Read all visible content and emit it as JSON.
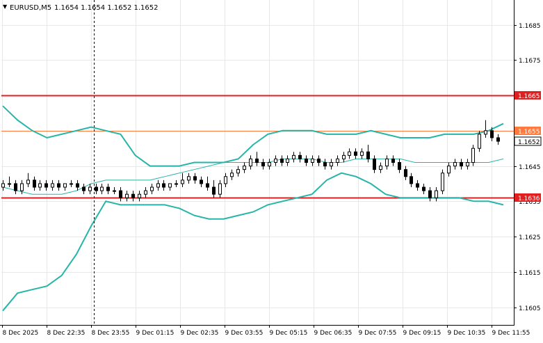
{
  "header": {
    "symbol": "EURUSD,M5",
    "ohlc": "1.1654 1.1654 1.1652 1.1652",
    "dropdown_glyph": "▼"
  },
  "chart_data": {
    "type": "candlestick",
    "title": "EURUSD,M5",
    "xlabel": "",
    "ylabel": "",
    "ylim": [
      1.16,
      1.1692
    ],
    "grid": true,
    "y_ticks": [
      "1.1605",
      "1.1615",
      "1.1625",
      "1.1635",
      "1.1645",
      "1.1655",
      "1.1665",
      "1.1675",
      "1.1685"
    ],
    "x_ticks": [
      "8 Dec 2025",
      "8 Dec 22:35",
      "8 Dec 23:55",
      "9 Dec 01:15",
      "9 Dec 02:35",
      "9 Dec 03:55",
      "9 Dec 05:15",
      "9 Dec 06:35",
      "9 Dec 07:55",
      "9 Dec 09:15",
      "9 Dec 10:35",
      "9 Dec 11:55"
    ],
    "price_labels": [
      {
        "value": 1.1665,
        "label": "1.1665",
        "style": "red"
      },
      {
        "value": 1.1655,
        "label": "1.1655",
        "style": "orange"
      },
      {
        "value": 1.1652,
        "label": "1.1652",
        "style": "current"
      },
      {
        "value": 1.1636,
        "label": "1.1636",
        "style": "red"
      }
    ],
    "levels": [
      {
        "value": 1.1665,
        "color": "#e02020"
      },
      {
        "value": 1.1655,
        "color": "#ff7a3c"
      },
      {
        "value": 1.1636,
        "color": "#e02020"
      }
    ],
    "current_price": 1.1652,
    "crosshair_x_label": "8 Dec 23:55",
    "bollinger": {
      "color": "#26b5a8",
      "upper": [
        1.1662,
        1.1658,
        1.1655,
        1.1653,
        1.1654,
        1.1655,
        1.1656,
        1.1655,
        1.1654,
        1.1648,
        1.1645,
        1.1645,
        1.1645,
        1.1646,
        1.1646,
        1.1646,
        1.1647,
        1.1651,
        1.1654,
        1.1655,
        1.1655,
        1.1655,
        1.1654,
        1.1654,
        1.1654,
        1.1655,
        1.1654,
        1.1653,
        1.1653,
        1.1653,
        1.1654,
        1.1654,
        1.1654,
        1.1655,
        1.1657
      ],
      "middle": [
        1.1639,
        1.1638,
        1.1637,
        1.1637,
        1.1637,
        1.1638,
        1.164,
        1.1641,
        1.1641,
        1.1641,
        1.1641,
        1.1642,
        1.1643,
        1.1644,
        1.1645,
        1.1646,
        1.1646,
        1.1646,
        1.1646,
        1.1647,
        1.1647,
        1.1647,
        1.1646,
        1.1646,
        1.1647,
        1.1647,
        1.1647,
        1.1647,
        1.1646,
        1.1646,
        1.1646,
        1.1646,
        1.1646,
        1.1646,
        1.1647
      ],
      "lower": [
        1.1604,
        1.1609,
        1.161,
        1.1611,
        1.1614,
        1.162,
        1.1628,
        1.1635,
        1.1634,
        1.1634,
        1.1634,
        1.1634,
        1.1633,
        1.1631,
        1.163,
        1.163,
        1.1631,
        1.1632,
        1.1634,
        1.1635,
        1.1636,
        1.1637,
        1.1641,
        1.1643,
        1.1642,
        1.164,
        1.1637,
        1.1636,
        1.1636,
        1.1636,
        1.1636,
        1.1636,
        1.1635,
        1.1635,
        1.1634
      ]
    },
    "candles": [
      [
        1.1639,
        1.1641,
        1.1638,
        1.164
      ],
      [
        1.164,
        1.1642,
        1.1639,
        1.164
      ],
      [
        1.164,
        1.1641,
        1.1637,
        1.1638
      ],
      [
        1.1638,
        1.1641,
        1.1637,
        1.164
      ],
      [
        1.164,
        1.1643,
        1.1639,
        1.1641
      ],
      [
        1.1641,
        1.1642,
        1.1638,
        1.1639
      ],
      [
        1.1639,
        1.1641,
        1.1638,
        1.164
      ],
      [
        1.164,
        1.1641,
        1.1638,
        1.1639
      ],
      [
        1.1639,
        1.1641,
        1.1638,
        1.164
      ],
      [
        1.164,
        1.1641,
        1.1638,
        1.1639
      ],
      [
        1.1639,
        1.164,
        1.1638,
        1.164
      ],
      [
        1.164,
        1.1641,
        1.1639,
        1.164
      ],
      [
        1.164,
        1.1641,
        1.1638,
        1.1639
      ],
      [
        1.1639,
        1.164,
        1.1637,
        1.1638
      ],
      [
        1.1638,
        1.164,
        1.1637,
        1.1639
      ],
      [
        1.1639,
        1.164,
        1.1637,
        1.1638
      ],
      [
        1.1638,
        1.164,
        1.1637,
        1.1639
      ],
      [
        1.1639,
        1.164,
        1.1637,
        1.1638
      ],
      [
        1.1638,
        1.1639,
        1.1637,
        1.1638
      ],
      [
        1.1638,
        1.1639,
        1.1635,
        1.1636
      ],
      [
        1.1636,
        1.1638,
        1.1635,
        1.1637
      ],
      [
        1.1637,
        1.1638,
        1.1635,
        1.1636
      ],
      [
        1.1636,
        1.1638,
        1.1635,
        1.1637
      ],
      [
        1.1637,
        1.1639,
        1.1636,
        1.1638
      ],
      [
        1.1638,
        1.164,
        1.1637,
        1.1639
      ],
      [
        1.1639,
        1.1641,
        1.1638,
        1.164
      ],
      [
        1.164,
        1.1641,
        1.1638,
        1.1639
      ],
      [
        1.1639,
        1.164,
        1.1638,
        1.164
      ],
      [
        1.164,
        1.1641,
        1.1639,
        1.164
      ],
      [
        1.164,
        1.1643,
        1.1639,
        1.1641
      ],
      [
        1.1641,
        1.1643,
        1.164,
        1.1642
      ],
      [
        1.1642,
        1.1643,
        1.164,
        1.1641
      ],
      [
        1.1641,
        1.1642,
        1.1639,
        1.164
      ],
      [
        1.164,
        1.1642,
        1.1638,
        1.1639
      ],
      [
        1.1639,
        1.1641,
        1.1636,
        1.1637
      ],
      [
        1.1637,
        1.1641,
        1.1636,
        1.164
      ],
      [
        1.164,
        1.1643,
        1.1639,
        1.1642
      ],
      [
        1.1642,
        1.1644,
        1.1641,
        1.1643
      ],
      [
        1.1643,
        1.1645,
        1.1642,
        1.1644
      ],
      [
        1.1644,
        1.1646,
        1.1643,
        1.1645
      ],
      [
        1.1645,
        1.1648,
        1.1644,
        1.1647
      ],
      [
        1.1647,
        1.1649,
        1.1645,
        1.1646
      ],
      [
        1.1646,
        1.1647,
        1.1644,
        1.1645
      ],
      [
        1.1645,
        1.1647,
        1.1644,
        1.1646
      ],
      [
        1.1646,
        1.1648,
        1.1645,
        1.1647
      ],
      [
        1.1647,
        1.1648,
        1.1645,
        1.1646
      ],
      [
        1.1646,
        1.1648,
        1.1645,
        1.1647
      ],
      [
        1.1647,
        1.1649,
        1.1646,
        1.1648
      ],
      [
        1.1648,
        1.1649,
        1.1646,
        1.1647
      ],
      [
        1.1647,
        1.1648,
        1.1645,
        1.1646
      ],
      [
        1.1646,
        1.1648,
        1.1645,
        1.1647
      ],
      [
        1.1647,
        1.1648,
        1.1645,
        1.1646
      ],
      [
        1.1646,
        1.1647,
        1.1644,
        1.1645
      ],
      [
        1.1645,
        1.1647,
        1.1644,
        1.1646
      ],
      [
        1.1646,
        1.1648,
        1.1645,
        1.1647
      ],
      [
        1.1647,
        1.1649,
        1.1646,
        1.1648
      ],
      [
        1.1648,
        1.165,
        1.1647,
        1.1649
      ],
      [
        1.1649,
        1.165,
        1.1647,
        1.1648
      ],
      [
        1.1648,
        1.165,
        1.1647,
        1.1649
      ],
      [
        1.1649,
        1.1651,
        1.1646,
        1.1647
      ],
      [
        1.1647,
        1.1648,
        1.1643,
        1.1644
      ],
      [
        1.1644,
        1.1646,
        1.1643,
        1.1645
      ],
      [
        1.1645,
        1.1648,
        1.1644,
        1.1647
      ],
      [
        1.1647,
        1.1648,
        1.1645,
        1.1646
      ],
      [
        1.1646,
        1.1647,
        1.1643,
        1.1644
      ],
      [
        1.1644,
        1.1645,
        1.1641,
        1.1642
      ],
      [
        1.1642,
        1.1643,
        1.1639,
        1.164
      ],
      [
        1.164,
        1.1641,
        1.1638,
        1.1639
      ],
      [
        1.1639,
        1.164,
        1.1637,
        1.1638
      ],
      [
        1.1638,
        1.1639,
        1.1635,
        1.1636
      ],
      [
        1.1636,
        1.1639,
        1.1635,
        1.1638
      ],
      [
        1.1638,
        1.1644,
        1.1637,
        1.1643
      ],
      [
        1.1643,
        1.1646,
        1.1642,
        1.1645
      ],
      [
        1.1645,
        1.1647,
        1.1644,
        1.1646
      ],
      [
        1.1646,
        1.1647,
        1.1644,
        1.1645
      ],
      [
        1.1645,
        1.1647,
        1.1644,
        1.1646
      ],
      [
        1.1646,
        1.1651,
        1.1645,
        1.165
      ],
      [
        1.165,
        1.1655,
        1.1649,
        1.1654
      ],
      [
        1.1654,
        1.1658,
        1.1653,
        1.1655
      ],
      [
        1.1655,
        1.1656,
        1.1652,
        1.1653
      ],
      [
        1.1653,
        1.1654,
        1.1651,
        1.1652
      ]
    ]
  }
}
